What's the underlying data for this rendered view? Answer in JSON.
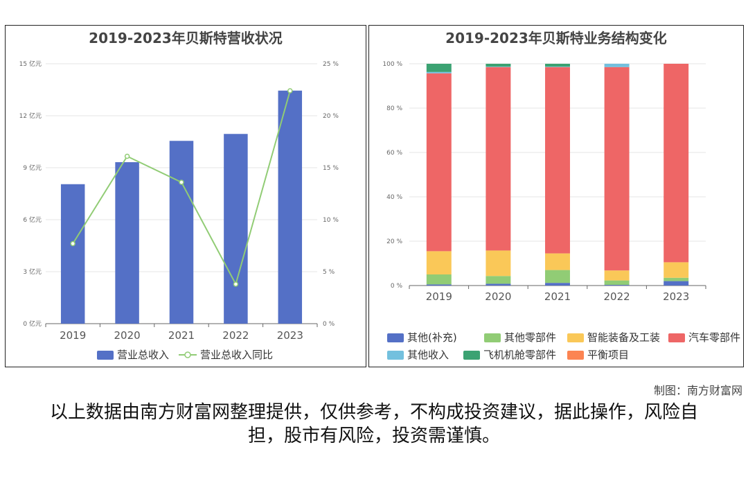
{
  "credit": "制图：南方财富网",
  "disclaimer": "以上数据由南方财富网整理提供，仅供参考，不构成投资建议，据此操作，风险自担，股市有风险，投资需谨慎。",
  "chart_data": [
    {
      "type": "bar",
      "title": "2019-2023年贝斯特营收状况",
      "categories": [
        "2019",
        "2020",
        "2021",
        "2022",
        "2023"
      ],
      "series": [
        {
          "name": "营业总收入",
          "type": "bar",
          "axis": "left",
          "color": "#5470c6",
          "values": [
            8.05,
            9.32,
            10.55,
            10.95,
            13.45
          ]
        },
        {
          "name": "营业总收入同比",
          "type": "line",
          "axis": "right",
          "color": "#91cc75",
          "values": [
            7.7,
            16.1,
            13.6,
            3.8,
            22.4
          ]
        }
      ],
      "y_left": {
        "ticks": [
          "0 亿元",
          "3 亿元",
          "6 亿元",
          "9 亿元",
          "12 亿元",
          "15 亿元"
        ],
        "ylim": [
          0,
          15
        ]
      },
      "y_right": {
        "ticks": [
          "0 %",
          "5 %",
          "10 %",
          "15 %",
          "20 %",
          "25 %"
        ],
        "ylim": [
          0,
          25
        ]
      },
      "legend_position": "bottom",
      "grid": true
    },
    {
      "type": "bar",
      "stacked": true,
      "title": "2019-2023年贝斯特业务结构变化",
      "categories": [
        "2019",
        "2020",
        "2021",
        "2022",
        "2023"
      ],
      "series": [
        {
          "name": "其他(补充)",
          "color": "#5470c6",
          "values": [
            0.5,
            0.8,
            1.2,
            0.3,
            2.0
          ]
        },
        {
          "name": "其他零部件",
          "color": "#91cc75",
          "values": [
            4.5,
            3.5,
            5.8,
            2.0,
            1.5
          ]
        },
        {
          "name": "智能装备及工装",
          "color": "#fac858",
          "values": [
            10.5,
            11.5,
            7.5,
            4.5,
            7.0
          ]
        },
        {
          "name": "汽车零部件",
          "color": "#ee6666",
          "values": [
            80.2,
            82.7,
            84.0,
            91.7,
            89.5
          ]
        },
        {
          "name": "其他收入",
          "color": "#73c0de",
          "values": [
            0.6,
            0.2,
            0.2,
            1.5,
            0.0
          ]
        },
        {
          "name": "飞机机舱零部件",
          "color": "#3ba272",
          "values": [
            3.7,
            1.3,
            1.3,
            0.0,
            0.0
          ]
        },
        {
          "name": "平衡项目",
          "color": "#fc8452",
          "values": [
            0,
            0,
            0,
            0,
            0
          ]
        }
      ],
      "y_ticks": [
        "0 %",
        "20 %",
        "40 %",
        "60 %",
        "80 %",
        "100 %"
      ],
      "ylim": [
        0,
        100
      ],
      "legend_position": "bottom",
      "grid": true
    }
  ]
}
